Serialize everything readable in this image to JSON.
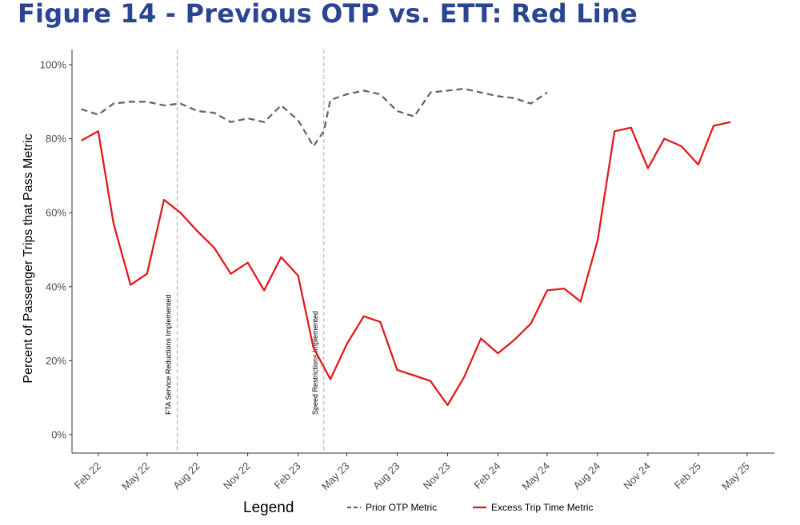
{
  "title": "Figure 14 - Previous OTP vs. ETT: Red Line",
  "chart_data": {
    "type": "line",
    "ylabel": "Percent of Passenger Trips that Pass Metric",
    "xlabel": "",
    "ylim": [
      0,
      100
    ],
    "yticks": [
      "0%",
      "20%",
      "40%",
      "60%",
      "80%",
      "100%"
    ],
    "ytick_values": [
      0,
      20,
      40,
      60,
      80,
      100
    ],
    "xlim": [
      "2021-12-15",
      "2025-06-20"
    ],
    "xticks": [
      "Feb 22",
      "May 22",
      "Aug 22",
      "Nov 22",
      "Feb 23",
      "May 23",
      "Aug 23",
      "Nov 23",
      "Feb 24",
      "May 24",
      "Aug 24",
      "Nov 24",
      "Feb 25",
      "May 25"
    ],
    "xtick_dates": [
      "2022-02-01",
      "2022-05-01",
      "2022-08-01",
      "2022-11-01",
      "2023-02-01",
      "2023-05-01",
      "2023-08-01",
      "2023-11-01",
      "2024-02-01",
      "2024-05-01",
      "2024-08-01",
      "2024-11-01",
      "2025-02-01",
      "2025-05-01"
    ],
    "grid": false,
    "annotations": [
      {
        "text": "FTA Service Reductions Implemented",
        "x": "2022-06-25"
      },
      {
        "text": "Speed Restrictions Implemented",
        "x": "2023-03-20"
      }
    ],
    "legend": {
      "title": "Legend",
      "position": "bottom"
    },
    "series": [
      {
        "name": "Prior OTP Metric",
        "style": "dashed",
        "color": "#666666",
        "x": [
          "2022-01-01",
          "2022-02-01",
          "2022-03-01",
          "2022-04-01",
          "2022-05-01",
          "2022-06-01",
          "2022-07-01",
          "2022-08-01",
          "2022-09-01",
          "2022-10-01",
          "2022-11-01",
          "2022-12-01",
          "2023-01-01",
          "2023-02-01",
          "2023-03-01",
          "2023-03-20",
          "2023-04-01",
          "2023-05-01",
          "2023-06-01",
          "2023-07-01",
          "2023-08-01",
          "2023-09-01",
          "2023-10-01",
          "2023-11-01",
          "2023-12-01",
          "2024-01-01",
          "2024-02-01",
          "2024-03-01",
          "2024-04-01",
          "2024-05-01"
        ],
        "y": [
          88,
          86.5,
          89.5,
          90,
          90,
          89,
          89.5,
          87.5,
          87,
          84.5,
          85.5,
          84.5,
          89,
          85,
          78,
          82,
          90.5,
          92,
          93,
          92,
          87.5,
          86,
          92.5,
          93,
          93.5,
          92.5,
          91.5,
          91,
          89.5,
          92.5
        ]
      },
      {
        "name": "Excess Trip Time Metric",
        "style": "solid",
        "color": "#e31a1c",
        "x": [
          "2022-01-01",
          "2022-02-01",
          "2022-03-01",
          "2022-04-01",
          "2022-05-01",
          "2022-06-01",
          "2022-07-01",
          "2022-08-01",
          "2022-09-01",
          "2022-10-01",
          "2022-11-01",
          "2022-12-01",
          "2023-01-01",
          "2023-02-01",
          "2023-03-01",
          "2023-04-01",
          "2023-05-01",
          "2023-06-01",
          "2023-07-01",
          "2023-08-01",
          "2023-09-01",
          "2023-10-01",
          "2023-11-01",
          "2023-12-01",
          "2024-01-01",
          "2024-02-01",
          "2024-03-01",
          "2024-04-01",
          "2024-05-01",
          "2024-06-01",
          "2024-07-01",
          "2024-08-01",
          "2024-09-01",
          "2024-10-01",
          "2024-11-01",
          "2024-12-01",
          "2025-01-01",
          "2025-02-01",
          "2025-03-01",
          "2025-04-01"
        ],
        "y": [
          79.5,
          82,
          57,
          40.5,
          43.5,
          63.5,
          60,
          55,
          50.5,
          43.5,
          46.5,
          39,
          48,
          43,
          23.5,
          15,
          24.5,
          32,
          30.5,
          17.5,
          16,
          14.5,
          8,
          15.5,
          26,
          22,
          25.5,
          30,
          39,
          39.5,
          36,
          52.5,
          82,
          83,
          72,
          80,
          78,
          73,
          83.5,
          84.5
        ]
      }
    ]
  }
}
